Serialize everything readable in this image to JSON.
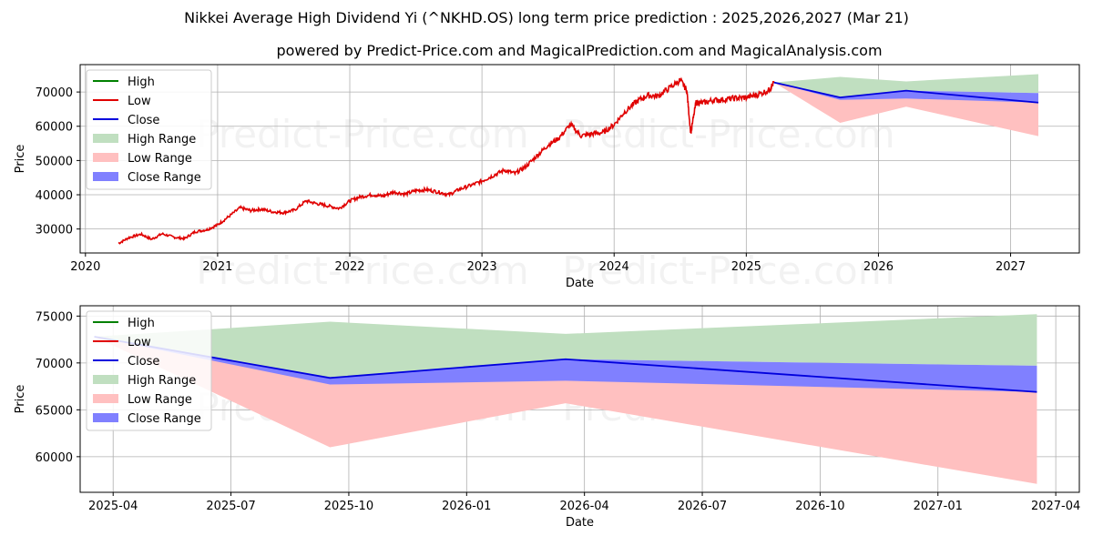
{
  "title": "Nikkei Average High Dividend Yi (^NKHD.OS) long term price prediction : 2025,2026,2027 (Mar 21)",
  "subtitle": "powered by Predict-Price.com and MagicalPrediction.com and MagicalAnalysis.com",
  "watermark": "Predict-Price.com",
  "colors": {
    "high": "#008000",
    "low": "#e00000",
    "close": "#0000dd",
    "high_range": "#c0dfc0",
    "low_range": "#ffc0c0",
    "close_range": "#8080ff",
    "grid": "#b0b0b0"
  },
  "chart_data": [
    {
      "id": "top",
      "type": "line",
      "xlabel": "Date",
      "ylabel": "Price",
      "xlim": [
        2019.96,
        2027.52
      ],
      "ylim": [
        23000,
        78000
      ],
      "xticks": [
        2020,
        2021,
        2022,
        2023,
        2024,
        2025,
        2026,
        2027
      ],
      "xtick_labels": [
        "2020",
        "2021",
        "2022",
        "2023",
        "2024",
        "2025",
        "2026",
        "2027"
      ],
      "yticks": [
        30000,
        40000,
        50000,
        60000,
        70000
      ],
      "ytick_labels": [
        "30000",
        "40000",
        "50000",
        "60000",
        "70000"
      ],
      "grid": true,
      "legend": "top-left",
      "legend_entries": [
        "High",
        "Low",
        "Close",
        "High Range",
        "Low Range",
        "Close Range"
      ],
      "history_low": {
        "x": [
          2020.25,
          2020.33,
          2020.42,
          2020.5,
          2020.58,
          2020.67,
          2020.75,
          2020.83,
          2020.92,
          2021.0,
          2021.08,
          2021.17,
          2021.25,
          2021.33,
          2021.42,
          2021.5,
          2021.58,
          2021.67,
          2021.75,
          2021.83,
          2021.92,
          2022.0,
          2022.08,
          2022.17,
          2022.25,
          2022.33,
          2022.42,
          2022.5,
          2022.58,
          2022.67,
          2022.75,
          2022.83,
          2022.92,
          2023.0,
          2023.08,
          2023.17,
          2023.25,
          2023.33,
          2023.42,
          2023.5,
          2023.58,
          2023.67,
          2023.75,
          2023.83,
          2023.92,
          2024.0,
          2024.08,
          2024.17,
          2024.25,
          2024.33,
          2024.42,
          2024.5,
          2024.55,
          2024.58,
          2024.62,
          2024.67,
          2024.75,
          2024.83,
          2024.92,
          2025.0,
          2025.08,
          2025.17,
          2025.21
        ],
        "y": [
          25800,
          27500,
          28500,
          27000,
          28600,
          27600,
          27200,
          29200,
          29800,
          31200,
          33500,
          36200,
          35400,
          35800,
          35000,
          34800,
          35500,
          38200,
          37400,
          36800,
          36000,
          38200,
          39400,
          40000,
          39600,
          40800,
          40200,
          41200,
          41500,
          40800,
          40000,
          41600,
          42800,
          44000,
          45500,
          47200,
          46200,
          48200,
          51500,
          54500,
          56500,
          60500,
          57200,
          57800,
          58200,
          60500,
          64200,
          67200,
          69000,
          68800,
          71200,
          73500,
          70500,
          58000,
          67000,
          66800,
          67600,
          67800,
          68200,
          68400,
          69200,
          70500,
          72800
        ]
      },
      "forecast": {
        "x": [
          2025.21,
          2025.71,
          2026.21,
          2027.21
        ],
        "close": [
          72800,
          68400,
          70400,
          66900
        ],
        "high_range": [
          [
            72800,
            72800
          ],
          [
            68400,
            74400
          ],
          [
            70400,
            73100
          ],
          [
            69700,
            75200
          ]
        ],
        "low_range": [
          [
            72800,
            72800
          ],
          [
            61000,
            68400
          ],
          [
            65700,
            70400
          ],
          [
            57100,
            66900
          ]
        ],
        "close_range": [
          [
            72800,
            72800
          ],
          [
            67700,
            68400
          ],
          [
            68100,
            70400
          ],
          [
            66900,
            69700
          ]
        ]
      }
    },
    {
      "id": "bottom",
      "type": "line",
      "xlabel": "Date",
      "ylabel": "Price",
      "xlim": [
        2025.18,
        2027.3
      ],
      "ylim": [
        56200,
        76100
      ],
      "xticks": [
        2025.25,
        2025.5,
        2025.75,
        2026.0,
        2026.25,
        2026.5,
        2026.75,
        2027.0,
        2027.25
      ],
      "xtick_labels": [
        "2025-04",
        "2025-07",
        "2025-10",
        "2026-01",
        "2026-04",
        "2026-07",
        "2026-10",
        "2027-01",
        "2027-04"
      ],
      "yticks": [
        60000,
        65000,
        70000,
        75000
      ],
      "ytick_labels": [
        "60000",
        "65000",
        "70000",
        "75000"
      ],
      "grid": true,
      "legend": "top-left",
      "legend_entries": [
        "High",
        "Low",
        "Close",
        "High Range",
        "Low Range",
        "Close Range"
      ],
      "forecast": {
        "x": [
          2025.21,
          2025.71,
          2026.21,
          2027.21
        ],
        "close": [
          72800,
          68400,
          70400,
          66900
        ],
        "high_range": [
          [
            72800,
            72800
          ],
          [
            68400,
            74400
          ],
          [
            70400,
            73100
          ],
          [
            69700,
            75200
          ]
        ],
        "low_range": [
          [
            72800,
            72800
          ],
          [
            61000,
            68400
          ],
          [
            65700,
            70400
          ],
          [
            57100,
            66900
          ]
        ],
        "close_range": [
          [
            72800,
            72800
          ],
          [
            67700,
            68400
          ],
          [
            68100,
            70400
          ],
          [
            66900,
            69700
          ]
        ]
      }
    }
  ]
}
